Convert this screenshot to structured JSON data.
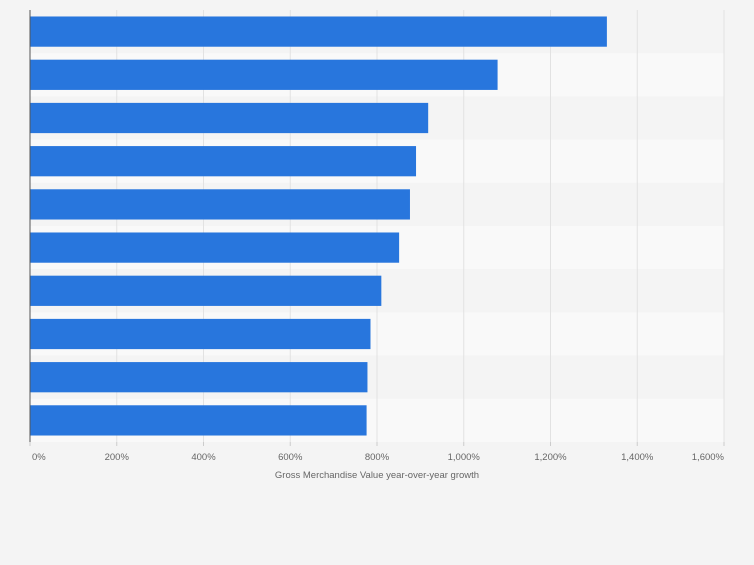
{
  "chart_data": {
    "type": "bar",
    "orientation": "horizontal",
    "categories": [
      "",
      "",
      "",
      "",
      "",
      "",
      "",
      "",
      "",
      ""
    ],
    "values": [
      1330,
      1078,
      918,
      890,
      876,
      851,
      810,
      785,
      778,
      776
    ],
    "xlabel": "Gross Merchandise Value year-over-year growth",
    "ylabel": "",
    "xlim": [
      0,
      1600
    ],
    "ticks": [
      0,
      200,
      400,
      600,
      800,
      1000,
      1200,
      1400,
      1600
    ],
    "tick_labels": [
      "0%",
      "200%",
      "400%",
      "600%",
      "800%",
      "1,000%",
      "1,200%",
      "1,400%",
      "1,600%"
    ],
    "grid": true,
    "bar_color": "#2876dd",
    "band_colors": [
      "#f4f4f4",
      "#f9f9f9"
    ]
  }
}
